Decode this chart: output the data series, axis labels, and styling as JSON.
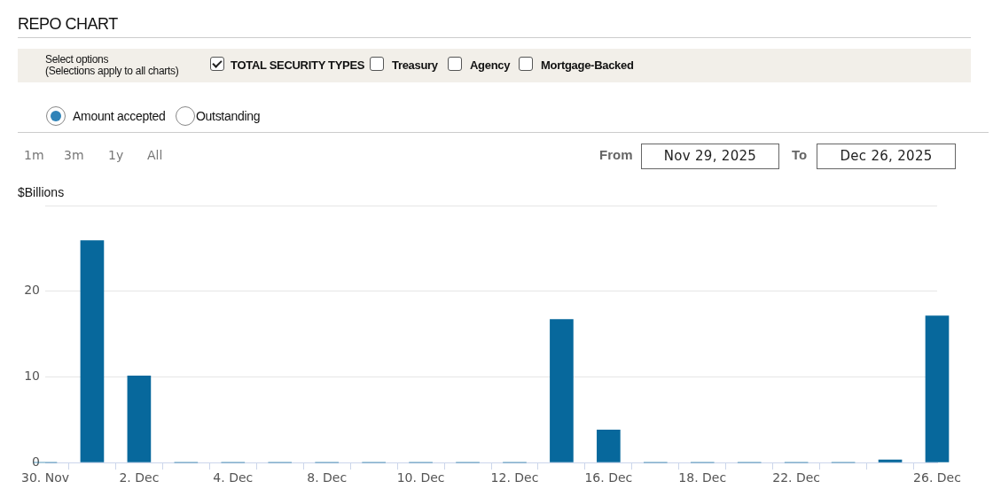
{
  "chart_data": {
    "type": "bar",
    "title": "REPO CHART",
    "ylabel": "$Billions",
    "categories": [
      "30. Nov",
      null,
      "2. Dec",
      null,
      "4. Dec",
      null,
      "8. Dec",
      null,
      "10. Dec",
      null,
      "12. Dec",
      null,
      "16. Dec",
      null,
      "18. Dec",
      null,
      "22. Dec",
      null,
      null,
      "26. Dec"
    ],
    "values": [
      0,
      25.9,
      10.1,
      0,
      0,
      0,
      0,
      0,
      0,
      0,
      0,
      16.7,
      3.8,
      0,
      0,
      0,
      0,
      0,
      0.3,
      17.1
    ],
    "color": "#07689c",
    "ylim": [
      0,
      30
    ],
    "yticks": [
      0,
      10,
      20,
      {
        "value": 30,
        "label": null
      }
    ],
    "grid": "y",
    "legend": false,
    "annotations": [
      "Select options",
      "(Selections apply to all charts)",
      "TOTAL SECURITY TYPES",
      "Treasury",
      "Agency",
      "Mortgage-Backed",
      "Amount accepted",
      "Outstanding",
      "1m",
      "3m",
      "1y",
      "All",
      "From",
      "Nov 29, 2025",
      "To",
      "Dec 26, 2025"
    ]
  }
}
